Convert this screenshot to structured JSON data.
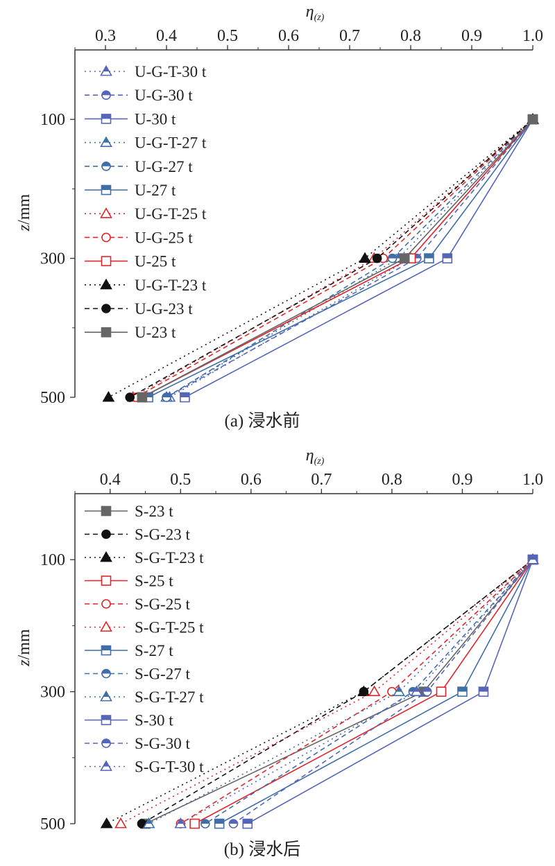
{
  "chart_data": [
    {
      "type": "line",
      "caption": "(a) 浸水前",
      "xlabel_main": "η",
      "xlabel_sub": "(z)",
      "ylabel_main": "z",
      "ylabel_rest": "/mm",
      "xlim": [
        0.25,
        1.0
      ],
      "ylim": [
        500,
        0
      ],
      "x_axis_position": "top",
      "y_axis_reversed": true,
      "xticks": [
        "0.3",
        "0.4",
        "0.5",
        "0.6",
        "0.7",
        "0.8",
        "0.9",
        "1.0"
      ],
      "yticks": [
        "100",
        "300",
        "500"
      ],
      "grid": false,
      "legend_position": "top-left",
      "z": [
        100,
        300,
        500
      ],
      "series": [
        {
          "name": "U-G-T-30 t",
          "x": [
            1.0,
            0.8,
            0.405
          ],
          "color": "#5566b8",
          "dash": "dotted",
          "marker": "triangle-half"
        },
        {
          "name": "U-G-30 t",
          "x": [
            1.0,
            0.81,
            0.4
          ],
          "color": "#5566b8",
          "dash": "dashed",
          "marker": "circle-half"
        },
        {
          "name": "U-30 t",
          "x": [
            1.0,
            0.86,
            0.43
          ],
          "color": "#5566b8",
          "dash": "solid",
          "marker": "square-half"
        },
        {
          "name": "U-G-T-27 t",
          "x": [
            1.0,
            0.78,
            0.4
          ],
          "color": "#3f6ea8",
          "dash": "dotted",
          "marker": "triangle-half"
        },
        {
          "name": "U-G-27 t",
          "x": [
            1.0,
            0.77,
            0.4
          ],
          "color": "#3f6ea8",
          "dash": "dashed",
          "marker": "circle-half"
        },
        {
          "name": "U-27 t",
          "x": [
            1.0,
            0.83,
            0.37
          ],
          "color": "#3f6ea8",
          "dash": "solid",
          "marker": "square-half"
        },
        {
          "name": "U-G-T-25 t",
          "x": [
            1.0,
            0.74,
            0.345
          ],
          "color": "#e0262a",
          "dash": "dotted",
          "marker": "triangle-open"
        },
        {
          "name": "U-G-25 t",
          "x": [
            1.0,
            0.755,
            0.35
          ],
          "color": "#e0262a",
          "dash": "dashed",
          "marker": "circle-open"
        },
        {
          "name": "U-25 t",
          "x": [
            1.0,
            0.8,
            0.36
          ],
          "color": "#e0262a",
          "dash": "solid",
          "marker": "square-open"
        },
        {
          "name": "U-G-T-23 t",
          "x": [
            1.0,
            0.725,
            0.305
          ],
          "color": "#111111",
          "dash": "dotted",
          "marker": "triangle-filled"
        },
        {
          "name": "U-G-23 t",
          "x": [
            1.0,
            0.745,
            0.34
          ],
          "color": "#111111",
          "dash": "dashed",
          "marker": "circle-filled"
        },
        {
          "name": "U-23 t",
          "x": [
            1.0,
            0.79,
            0.36
          ],
          "color": "#666666",
          "dash": "solid",
          "marker": "square-filled"
        }
      ]
    },
    {
      "type": "line",
      "caption": "(b) 浸水后",
      "xlabel_main": "η",
      "xlabel_sub": "(z)",
      "ylabel_main": "z",
      "ylabel_rest": "/mm",
      "xlim": [
        0.35,
        1.0
      ],
      "ylim": [
        500,
        0
      ],
      "x_axis_position": "top",
      "y_axis_reversed": true,
      "xticks": [
        "0.4",
        "0.5",
        "0.6",
        "0.7",
        "0.8",
        "0.9",
        "1.0"
      ],
      "yticks": [
        "100",
        "300",
        "500"
      ],
      "grid": false,
      "legend_position": "top-left",
      "z": [
        100,
        300,
        500
      ],
      "series": [
        {
          "name": "S-23 t",
          "x": [
            1.0,
            0.845,
            0.45
          ],
          "color": "#666666",
          "dash": "solid",
          "marker": "square-filled"
        },
        {
          "name": "S-G-23 t",
          "x": [
            1.0,
            0.76,
            0.445
          ],
          "color": "#111111",
          "dash": "dashed",
          "marker": "circle-filled"
        },
        {
          "name": "S-G-T-23 t",
          "x": [
            1.0,
            0.76,
            0.395
          ],
          "color": "#111111",
          "dash": "dotted",
          "marker": "triangle-filled"
        },
        {
          "name": "S-25 t",
          "x": [
            1.0,
            0.87,
            0.52
          ],
          "color": "#e0262a",
          "dash": "solid",
          "marker": "square-open"
        },
        {
          "name": "S-G-25 t",
          "x": [
            1.0,
            0.8,
            0.5
          ],
          "color": "#e0262a",
          "dash": "dashed",
          "marker": "circle-open"
        },
        {
          "name": "S-G-T-25 t",
          "x": [
            1.0,
            0.775,
            0.415
          ],
          "color": "#e0262a",
          "dash": "dotted",
          "marker": "triangle-open"
        },
        {
          "name": "S-27 t",
          "x": [
            1.0,
            0.9,
            0.555
          ],
          "color": "#3f6ea8",
          "dash": "solid",
          "marker": "square-half"
        },
        {
          "name": "S-G-27 t",
          "x": [
            1.0,
            0.83,
            0.535
          ],
          "color": "#3f6ea8",
          "dash": "dashed",
          "marker": "circle-half"
        },
        {
          "name": "S-G-T-27 t",
          "x": [
            1.0,
            0.81,
            0.455
          ],
          "color": "#3f6ea8",
          "dash": "dotted",
          "marker": "triangle-half"
        },
        {
          "name": "S-30 t",
          "x": [
            1.0,
            0.93,
            0.595
          ],
          "color": "#5566b8",
          "dash": "solid",
          "marker": "square-half"
        },
        {
          "name": "S-G-30 t",
          "x": [
            1.0,
            0.85,
            0.575
          ],
          "color": "#5566b8",
          "dash": "dashed",
          "marker": "circle-half"
        },
        {
          "name": "S-G-T-30 t",
          "x": [
            1.0,
            0.835,
            0.5
          ],
          "color": "#5566b8",
          "dash": "dotted",
          "marker": "triangle-half"
        }
      ]
    }
  ]
}
